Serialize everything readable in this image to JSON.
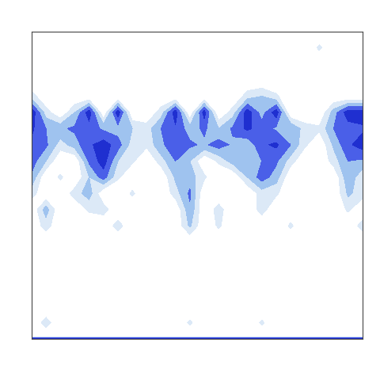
{
  "chart_data": {
    "type": "contour",
    "tick_labels": false,
    "xlim": [
      0,
      23
    ],
    "ylim": [
      0,
      19
    ],
    "x": [
      0,
      1,
      2,
      3,
      4,
      5,
      6,
      7,
      8,
      9,
      10,
      11,
      12,
      13,
      14,
      15,
      16,
      17,
      18,
      19,
      20,
      21,
      22,
      23
    ],
    "y": [
      0,
      0.15,
      1,
      2,
      3,
      4,
      5,
      6,
      7,
      8,
      9,
      10,
      11,
      12,
      13,
      14,
      15,
      16,
      17,
      18,
      19
    ],
    "levels": [
      1,
      2,
      3,
      4,
      5,
      7
    ],
    "colors": [
      "#dce9f7",
      "#9fc3ef",
      "#4a5fe8",
      "#1f2fd0",
      "#5a9e2a"
    ],
    "z": [
      [
        6,
        6,
        6,
        6,
        6,
        6,
        6,
        6,
        6,
        6,
        6,
        6,
        6,
        6,
        6,
        6,
        6,
        6,
        6,
        6,
        6,
        6,
        6,
        6
      ],
      [
        0,
        0,
        0,
        0,
        0,
        0,
        0,
        0,
        0,
        0,
        0,
        0,
        0,
        0,
        0,
        0,
        0,
        0,
        0,
        0,
        0,
        0,
        0,
        0
      ],
      [
        0,
        1.5,
        0,
        0,
        0,
        0,
        0,
        0,
        0,
        0,
        0,
        1.2,
        0,
        0,
        0,
        0,
        1.2,
        0,
        0,
        0,
        0,
        0,
        0,
        0
      ],
      [
        0,
        0,
        0,
        0,
        0,
        0,
        0,
        0,
        0,
        0,
        0,
        0,
        0,
        0,
        0,
        0,
        0,
        0,
        0,
        0,
        0,
        0,
        0,
        0
      ],
      [
        0,
        0,
        0,
        0,
        0,
        0,
        0,
        0,
        0,
        0,
        0,
        0,
        0,
        0,
        0,
        0,
        0,
        0,
        0,
        0,
        0,
        0,
        0,
        0
      ],
      [
        0,
        0,
        0,
        0,
        0,
        0,
        0,
        0,
        0,
        0,
        0,
        0,
        0,
        0,
        0,
        0,
        0,
        0,
        0,
        0,
        0,
        0,
        0,
        0
      ],
      [
        0,
        0,
        0,
        0,
        0,
        0,
        0,
        0,
        0,
        0,
        0,
        0,
        0,
        0,
        0,
        0,
        0,
        0,
        0,
        0,
        0,
        0,
        0,
        0
      ],
      [
        0,
        0,
        0,
        0,
        0,
        0,
        0,
        0,
        0,
        0,
        0,
        0,
        0,
        0,
        0,
        0,
        0,
        0,
        0,
        0,
        0,
        0,
        0,
        0
      ],
      [
        0,
        1.5,
        0,
        0,
        0,
        0,
        1.5,
        0,
        0,
        0,
        0,
        2.2,
        0,
        1.2,
        0,
        0,
        0,
        0,
        1.2,
        0,
        0,
        0,
        0,
        1.5
      ],
      [
        0,
        2.5,
        0,
        0,
        1.2,
        1.5,
        0,
        0,
        0,
        0,
        0,
        2.8,
        0,
        1.5,
        0,
        0,
        1.5,
        0,
        0,
        0,
        0,
        0,
        1.2,
        0
      ],
      [
        1.5,
        0,
        0,
        1.5,
        2.5,
        0,
        0,
        1.2,
        0,
        0,
        1.5,
        3.2,
        0,
        0,
        0,
        0,
        1.5,
        1.2,
        0,
        0,
        0,
        0,
        2.2,
        1.5
      ],
      [
        2.8,
        0,
        1.2,
        0,
        2.0,
        3.5,
        1.2,
        0,
        0,
        0,
        2.2,
        2.5,
        1.2,
        0,
        0,
        2.0,
        3.5,
        2.5,
        0,
        0,
        0,
        0,
        2.8,
        1.2
      ],
      [
        3.5,
        2.0,
        0,
        0,
        3.2,
        4.5,
        2.0,
        1.2,
        0,
        1.5,
        3.0,
        2.0,
        0,
        1.2,
        2.5,
        2.5,
        3.0,
        3.2,
        1.5,
        0,
        0,
        1.5,
        3.0,
        2.8
      ],
      [
        3.8,
        3.2,
        1.5,
        2.5,
        3.8,
        4.5,
        3.5,
        1.5,
        1.2,
        2.8,
        3.6,
        3.2,
        2.8,
        3.5,
        2.8,
        2.2,
        3.8,
        4.2,
        3.0,
        1.2,
        0,
        2.2,
        3.8,
        4.5
      ],
      [
        4.2,
        3.0,
        2.8,
        3.2,
        3.5,
        2.8,
        2.5,
        2.0,
        1.5,
        3.0,
        3.8,
        2.5,
        3.2,
        2.0,
        3.2,
        4.2,
        3.5,
        2.8,
        3.0,
        1.5,
        1.2,
        3.0,
        3.5,
        3.8
      ],
      [
        4.8,
        1.5,
        0,
        2.0,
        4.6,
        0,
        4.6,
        0,
        0,
        1.5,
        4.6,
        0,
        4.5,
        0,
        1.5,
        4.6,
        2.5,
        4.6,
        0,
        0,
        0,
        2.5,
        4.6,
        4.6
      ],
      [
        1.5,
        0,
        0,
        0,
        0,
        0,
        0,
        0,
        0,
        0,
        0,
        0,
        0,
        0,
        0,
        1.5,
        2.0,
        1.2,
        0,
        0,
        0,
        0,
        0,
        0
      ],
      [
        0,
        0,
        0,
        0,
        0,
        0,
        0,
        0,
        0,
        0,
        0,
        0,
        0,
        0,
        0,
        0,
        0,
        0,
        0,
        0,
        0,
        0,
        0,
        0
      ],
      [
        0,
        0,
        0,
        0,
        0,
        0,
        0,
        0,
        0,
        0,
        0,
        0,
        0,
        0,
        0,
        0,
        0,
        0,
        0,
        0,
        0,
        0,
        0,
        0
      ],
      [
        0,
        0,
        0,
        0,
        0,
        0,
        0,
        0,
        0,
        0,
        0,
        0,
        0,
        0,
        0,
        0,
        0,
        0,
        0,
        0,
        1.2,
        0,
        0,
        0
      ],
      [
        0,
        0,
        0,
        0,
        0,
        0,
        0,
        0,
        0,
        0,
        0,
        0,
        0,
        0,
        0,
        0,
        0,
        0,
        0,
        0,
        0,
        0,
        0,
        0
      ]
    ]
  }
}
